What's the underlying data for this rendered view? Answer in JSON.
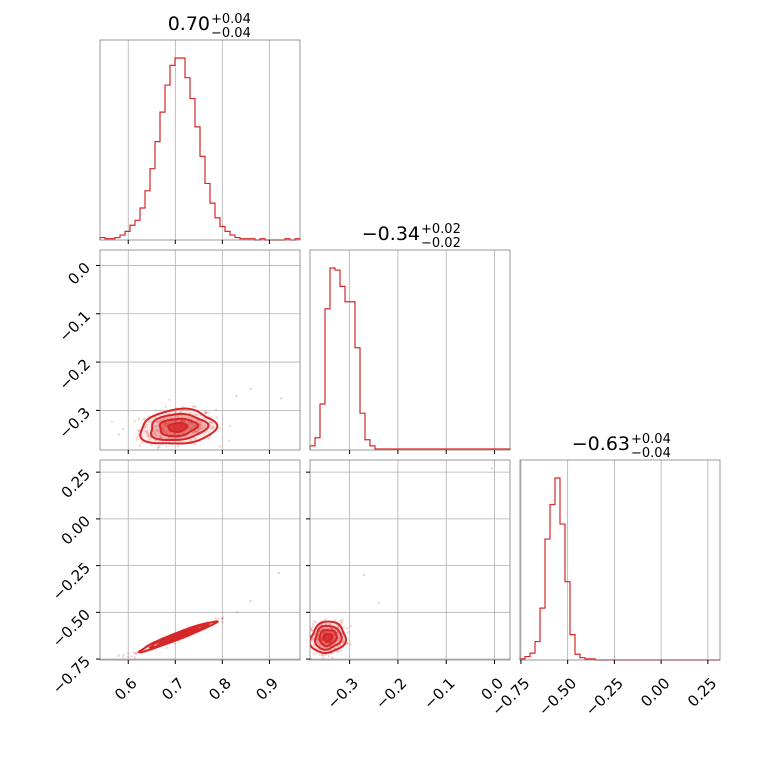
{
  "chart_data": {
    "type": "corner",
    "color": "#d62728",
    "grid_color": "#b0b0b0",
    "parameters": [
      {
        "title_value": "0.70",
        "title_plus": "+0.04",
        "title_minus": "−0.04",
        "range": [
          0.54,
          0.965
        ],
        "ticks": [
          0.6,
          0.7,
          0.8,
          0.9
        ],
        "tick_labels": [
          "0.6",
          "0.7",
          "0.8",
          "0.9"
        ],
        "hist_edges": [
          0.54,
          0.965
        ],
        "hist_counts": [
          2,
          1,
          1,
          2,
          4,
          7,
          12,
          16,
          26,
          40,
          58,
          80,
          104,
          126,
          142,
          148,
          148,
          132,
          115,
          92,
          68,
          46,
          30,
          18,
          11,
          7,
          4,
          2,
          1,
          1,
          1,
          0,
          1,
          0,
          0,
          0,
          0,
          1,
          0,
          1
        ]
      },
      {
        "title_value": "−0.34",
        "title_plus": "+0.02",
        "title_minus": "−0.02",
        "range": [
          -0.382,
          0.032
        ],
        "ticks": [
          -0.3,
          -0.2,
          -0.1,
          0.0
        ],
        "tick_labels": [
          "−0.3",
          "−0.2",
          "−0.1",
          "0.0"
        ],
        "hist_edges": [
          -0.382,
          0.032
        ],
        "hist_counts": [
          4,
          12,
          45,
          138,
          178,
          176,
          160,
          145,
          145,
          100,
          36,
          10,
          4,
          1,
          1,
          1,
          1,
          1,
          1,
          1,
          1,
          1,
          1,
          1,
          1,
          1,
          1,
          1,
          1,
          1,
          1,
          1,
          1,
          1,
          1,
          1,
          1,
          1,
          1,
          1
        ]
      },
      {
        "title_value": "−0.63",
        "title_plus": "+0.04",
        "title_minus": "−0.04",
        "range": [
          -0.755,
          0.315
        ],
        "ticks": [
          -0.75,
          -0.5,
          -0.25,
          0.0,
          0.25
        ],
        "tick_labels": [
          "−0.75",
          "−0.50",
          "−0.25",
          "0.00",
          "0.25"
        ],
        "hist_edges": [
          -0.755,
          0.315
        ],
        "hist_counts": [
          1,
          3,
          6,
          16,
          45,
          105,
          135,
          158,
          118,
          68,
          22,
          5,
          2,
          1,
          1,
          0,
          0,
          0,
          0,
          0,
          0,
          0,
          0,
          0,
          0,
          0,
          0,
          0,
          0,
          0,
          0,
          0,
          0,
          0,
          0,
          0,
          0,
          0,
          0,
          0
        ]
      }
    ],
    "pairs": [
      {
        "x_param": 0,
        "y_param": 1,
        "center": [
          0.705,
          -0.335
        ],
        "sigma": [
          0.04,
          0.018
        ],
        "corr": 0.15,
        "outliers": [
          [
            0.86,
            -0.255
          ],
          [
            0.925,
            -0.275
          ],
          [
            0.83,
            -0.27
          ],
          [
            0.58,
            -0.35
          ],
          [
            0.62,
            -0.36
          ]
        ]
      },
      {
        "x_param": 0,
        "y_param": 2,
        "center": [
          0.705,
          -0.628
        ],
        "sigma": [
          0.04,
          0.04
        ],
        "corr": 0.97,
        "outliers": [
          [
            0.92,
            -0.29
          ],
          [
            0.86,
            -0.44
          ],
          [
            0.58,
            -0.73
          ]
        ]
      },
      {
        "x_param": 1,
        "y_param": 2,
        "center": [
          -0.345,
          -0.635
        ],
        "sigma": [
          0.018,
          0.042
        ],
        "corr": 0.1,
        "outliers": [
          [
            -0.005,
            0.27
          ],
          [
            -0.27,
            -0.3
          ],
          [
            -0.24,
            -0.45
          ],
          [
            -0.38,
            -0.75
          ]
        ]
      }
    ]
  }
}
